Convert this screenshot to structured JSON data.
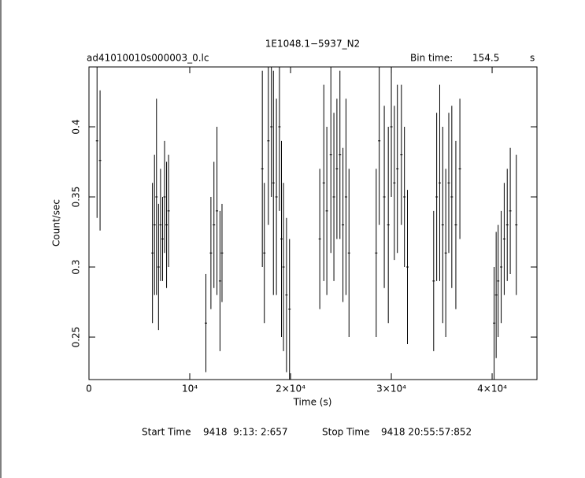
{
  "chart_data": {
    "type": "errorbar",
    "title": "1E1048.1−5937_N2",
    "file_name": "ad41010010s000003_0.lc",
    "bin_time_label": "Bin time:",
    "bin_time": 154.5,
    "bin_time_unit": "s",
    "x_label": "Time (s)",
    "y_label": "Count/sec",
    "start_label": "Start Time",
    "start_time": "9418  9:13: 2:657",
    "stop_label": "Stop Time",
    "stop_time": "9418 20:55:57:852",
    "color": "#000000",
    "xlim": [
      0,
      44450
    ],
    "ylim": [
      0.2197,
      0.4427
    ],
    "xticks": [
      0,
      {
        "value": 10000,
        "label": "10⁴"
      },
      {
        "value": 20000,
        "label": "2×10⁴"
      },
      {
        "value": 30000,
        "label": "3×10⁴"
      },
      {
        "value": 40000,
        "label": "4×10⁴"
      }
    ],
    "yticks": [
      0.25,
      0.3,
      0.35,
      0.4
    ],
    "x": [
      800,
      1100,
      6300,
      6500,
      6700,
      6900,
      7100,
      7300,
      7500,
      7700,
      7900,
      11600,
      12100,
      12400,
      12700,
      13000,
      13200,
      17200,
      17400,
      17800,
      18100,
      18300,
      18600,
      18900,
      19100,
      19300,
      19600,
      19900,
      22900,
      23300,
      23600,
      24000,
      24300,
      24600,
      24900,
      25200,
      25500,
      25800,
      28500,
      28800,
      29300,
      29700,
      30000,
      30300,
      30600,
      31000,
      31300,
      31600,
      34200,
      34500,
      34800,
      35100,
      35400,
      35700,
      36000,
      36400,
      36800,
      40200,
      40400,
      40600,
      40900,
      41200,
      41500,
      41800,
      42400
    ],
    "values": [
      0.39,
      0.376,
      0.31,
      0.33,
      0.35,
      0.3,
      0.33,
      0.32,
      0.35,
      0.33,
      0.34,
      0.26,
      0.31,
      0.33,
      0.34,
      0.29,
      0.31,
      0.37,
      0.31,
      0.39,
      0.4,
      0.36,
      0.35,
      0.4,
      0.32,
      0.3,
      0.28,
      0.27,
      0.32,
      0.36,
      0.34,
      0.38,
      0.35,
      0.37,
      0.38,
      0.33,
      0.35,
      0.31,
      0.31,
      0.39,
      0.35,
      0.33,
      0.4,
      0.36,
      0.37,
      0.38,
      0.35,
      0.3,
      0.29,
      0.35,
      0.36,
      0.33,
      0.31,
      0.36,
      0.35,
      0.33,
      0.37,
      0.26,
      0.28,
      0.29,
      0.3,
      0.32,
      0.33,
      0.34,
      0.33
    ],
    "errors": [
      0.055,
      0.05,
      0.05,
      0.05,
      0.07,
      0.045,
      0.04,
      0.03,
      0.04,
      0.045,
      0.04,
      0.035,
      0.04,
      0.045,
      0.06,
      0.05,
      0.035,
      0.07,
      0.05,
      0.06,
      0.05,
      0.08,
      0.07,
      0.06,
      0.07,
      0.06,
      0.055,
      0.05,
      0.05,
      0.07,
      0.06,
      0.07,
      0.06,
      0.05,
      0.06,
      0.055,
      0.07,
      0.06,
      0.06,
      0.06,
      0.065,
      0.07,
      0.05,
      0.055,
      0.06,
      0.05,
      0.05,
      0.055,
      0.05,
      0.06,
      0.07,
      0.07,
      0.06,
      0.05,
      0.065,
      0.06,
      0.05,
      0.04,
      0.045,
      0.04,
      0.04,
      0.04,
      0.04,
      0.045,
      0.05
    ]
  }
}
